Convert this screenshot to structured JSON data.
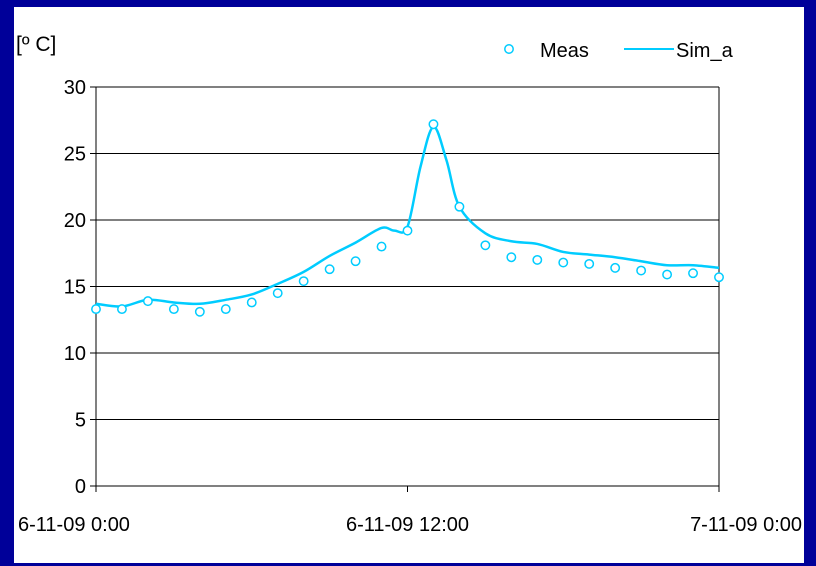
{
  "chart_data": {
    "type": "line",
    "ylabel": "[º C]",
    "xlabel": "",
    "ylim": [
      0,
      30
    ],
    "yticks": [
      0,
      5,
      10,
      15,
      20,
      25,
      30
    ],
    "xlim": [
      0,
      24
    ],
    "xticks": [
      {
        "x": 0,
        "label": "6-11-09 0:00"
      },
      {
        "x": 12,
        "label": "6-11-09 12:00"
      },
      {
        "x": 24,
        "label": "7-11-09 0:00"
      }
    ],
    "grid": "horizontal",
    "legend_position": "top-right",
    "colors": {
      "series": "#00ccff"
    },
    "series": [
      {
        "name": "Meas",
        "style": "markers",
        "x": [
          0,
          1,
          2,
          3,
          4,
          5,
          6,
          7,
          8,
          9,
          10,
          11,
          12,
          13,
          14,
          15,
          16,
          17,
          18,
          19,
          20,
          21,
          22,
          23,
          24
        ],
        "y": [
          13.3,
          13.3,
          13.9,
          13.3,
          13.1,
          13.3,
          13.8,
          14.5,
          15.4,
          16.3,
          16.9,
          18.0,
          19.2,
          27.2,
          21.0,
          18.1,
          17.2,
          17.0,
          16.8,
          16.7,
          16.4,
          16.2,
          15.9,
          16.0,
          15.7
        ]
      },
      {
        "name": "Sim_a",
        "style": "line",
        "x": [
          0,
          1,
          2,
          3,
          4,
          5,
          6,
          7,
          8,
          9,
          10,
          11,
          11.5,
          12,
          12.5,
          13,
          13.5,
          14,
          15,
          16,
          17,
          18,
          19,
          20,
          21,
          22,
          23,
          24
        ],
        "y": [
          13.7,
          13.5,
          14.0,
          13.8,
          13.7,
          14.0,
          14.4,
          15.2,
          16.1,
          17.3,
          18.3,
          19.4,
          19.2,
          19.5,
          24.0,
          27.0,
          24.5,
          21.0,
          19.0,
          18.4,
          18.2,
          17.6,
          17.4,
          17.2,
          16.9,
          16.6,
          16.6,
          16.4
        ]
      }
    ]
  }
}
